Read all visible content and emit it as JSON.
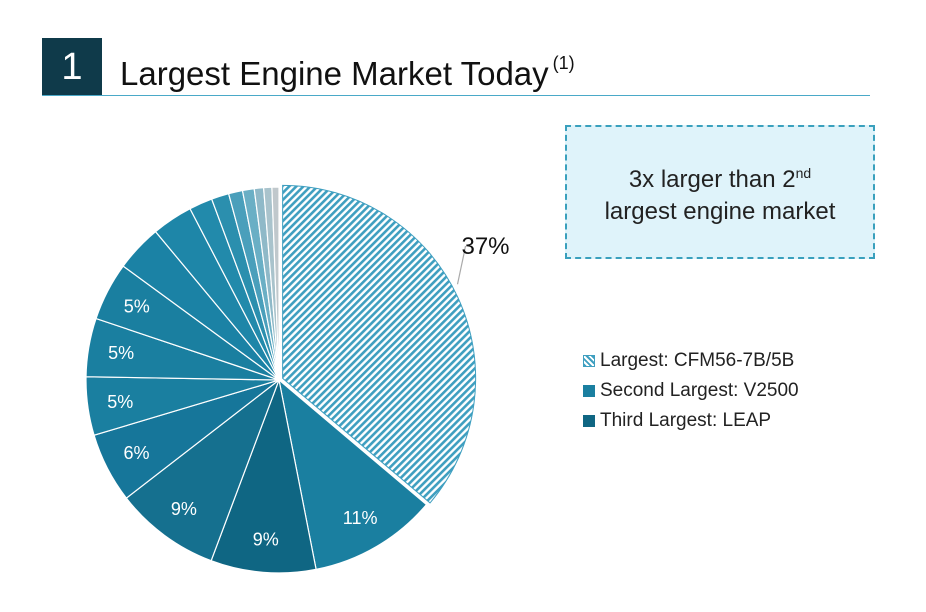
{
  "header": {
    "number": "1",
    "title": "Largest Engine Market Today",
    "footnote": "(1)"
  },
  "callout": {
    "line1_main": "3x larger than 2",
    "line1_sup": "nd",
    "line2": "largest engine market"
  },
  "legend": [
    {
      "label": "Largest: CFM56-7B/5B",
      "style": "hatch",
      "color": "#3f9fc0"
    },
    {
      "label": "Second Largest: V2500",
      "style": "solid",
      "color": "#1a7fa0"
    },
    {
      "label": "Third Largest: LEAP",
      "style": "solid",
      "color": "#0f6683"
    }
  ],
  "chart_data": {
    "type": "pie",
    "start": "12 o'clock, clockwise",
    "slices": [
      {
        "value": 37,
        "label": "37%",
        "color": "#3f9fc0",
        "pattern": "hatch"
      },
      {
        "value": 11,
        "label": "11%",
        "color": "#1a7fa0"
      },
      {
        "value": 9,
        "label": "9%",
        "color": "#0f6683"
      },
      {
        "value": 9,
        "label": "9%",
        "color": "#15708f"
      },
      {
        "value": 6,
        "label": "6%",
        "color": "#16769a"
      },
      {
        "value": 5,
        "label": "5%",
        "color": "#1a7fa0"
      },
      {
        "value": 5,
        "label": "5%",
        "color": "#1a7fa0"
      },
      {
        "value": 5,
        "label": "5%",
        "color": "#1a7fa0"
      },
      {
        "value": 4,
        "label": "",
        "color": "#1b82a5"
      },
      {
        "value": 3.5,
        "label": "",
        "color": "#1e86a8"
      },
      {
        "value": 2,
        "label": "",
        "color": "#228aab"
      },
      {
        "value": 1.5,
        "label": "",
        "color": "#2b8fae"
      },
      {
        "value": 1.2,
        "label": "",
        "color": "#4a9fbb"
      },
      {
        "value": 1,
        "label": "",
        "color": "#6aafc5"
      },
      {
        "value": 0.8,
        "label": "",
        "color": "#8fb9c8"
      },
      {
        "value": 0.7,
        "label": "",
        "color": "#a9c3cc"
      },
      {
        "value": 0.6,
        "label": "",
        "color": "#c0c8cc"
      }
    ]
  }
}
